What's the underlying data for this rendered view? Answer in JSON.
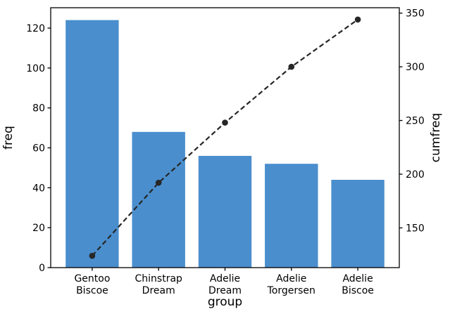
{
  "chart_data": {
    "type": "bar",
    "subtype": "pareto",
    "title": "",
    "xlabel": "group",
    "categories": [
      [
        "Gentoo",
        "Biscoe"
      ],
      [
        "Chinstrap",
        "Dream"
      ],
      [
        "Adelie",
        "Dream"
      ],
      [
        "Adelie",
        "Torgersen"
      ],
      [
        "Adelie",
        "Biscoe"
      ]
    ],
    "series": [
      {
        "name": "freq",
        "type": "bar",
        "axis": "left",
        "color": "#4a8ecd",
        "values": [
          124,
          68,
          56,
          52,
          44
        ]
      },
      {
        "name": "cumfreq",
        "type": "line",
        "axis": "right",
        "color": "#262626",
        "line_style": "dashed",
        "marker": "circle",
        "values": [
          124,
          192,
          248,
          300,
          344
        ]
      }
    ],
    "left_axis": {
      "label": "freq",
      "ticks": [
        0,
        20,
        40,
        60,
        80,
        100,
        120
      ],
      "range": [
        0,
        130.2
      ]
    },
    "right_axis": {
      "label": "cumfreq",
      "ticks": [
        150,
        200,
        250,
        300,
        350
      ],
      "range": [
        113,
        355
      ]
    },
    "grid": false,
    "legend": false,
    "background": "#ffffff",
    "text_color": "#000000"
  }
}
